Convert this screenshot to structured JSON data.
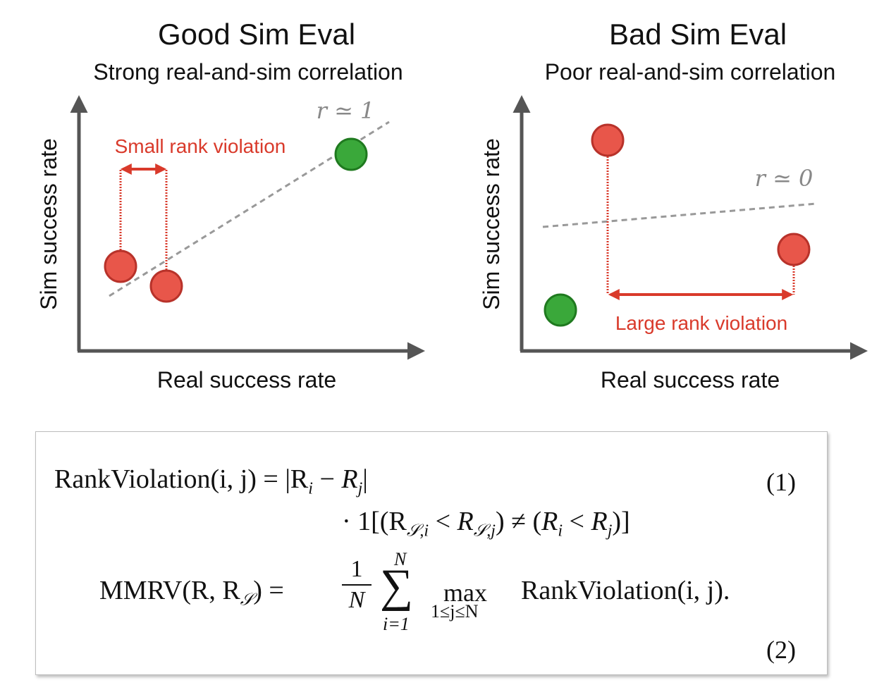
{
  "panels": [
    {
      "title": "Good Sim Eval",
      "subtitle": "Strong real-and-sim correlation",
      "ylabel": "Sim success rate",
      "xlabel": "Real success rate",
      "correlation_label": "r ≃ 1",
      "violation_label": "Small rank violation"
    },
    {
      "title": "Bad Sim Eval",
      "subtitle": "Poor real-and-sim correlation",
      "ylabel": "Sim success rate",
      "xlabel": "Real success rate",
      "correlation_label": "r ≃ 0",
      "violation_label": "Large rank violation"
    }
  ],
  "colors": {
    "bad_point": "#e8564a",
    "good_point": "#3aa83a",
    "violation": "#d93a2b",
    "fit_line": "#999999",
    "axis": "#555555"
  },
  "equations": {
    "eq1_lhs": "RankViolation(i, j) = |R",
    "eq1_num": "(1)",
    "eq1_line2": "· 1[(R",
    "eq2_lhs": "MMRV(R, R",
    "eq2_frac_num": "1",
    "eq2_frac_den": "N",
    "eq2_sum_top": "N",
    "eq2_sum_bottom": "i=1",
    "eq2_max": "max",
    "eq2_max_sub": "1≤j≤N",
    "eq2_rhs": "RankViolation(i, j).",
    "eq2_num": "(2)"
  }
}
